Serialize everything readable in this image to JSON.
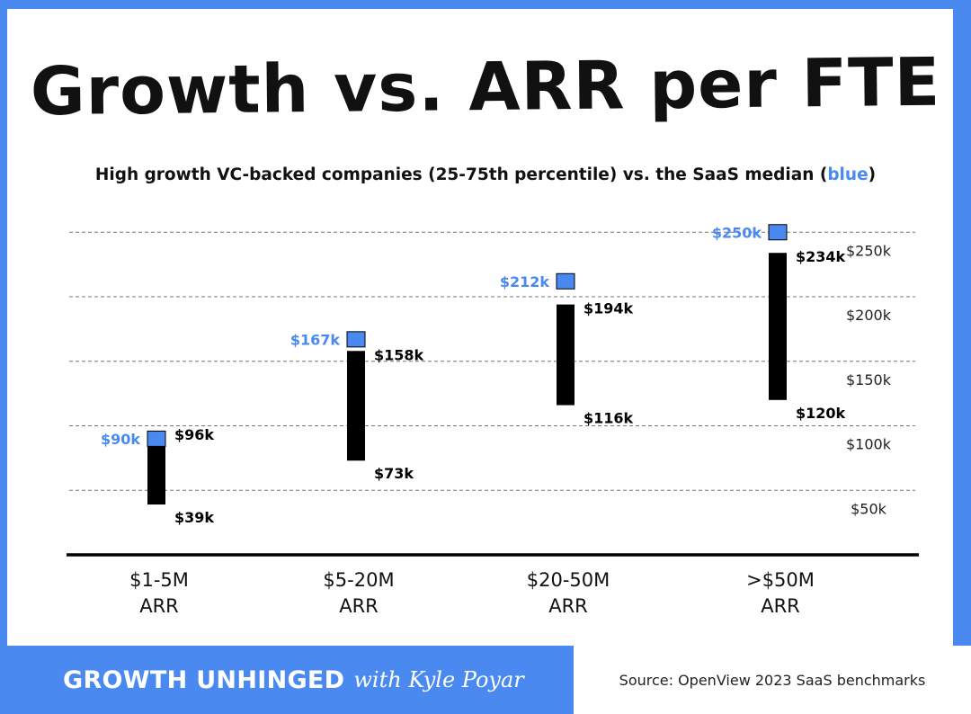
{
  "header": {
    "title": "Growth vs. ARR per FTE",
    "subtitle_main": "High growth VC-backed companies (25-75th percentile) vs. the SaaS median (",
    "subtitle_blue": "blue",
    "subtitle_end": ")"
  },
  "footer": {
    "brand": "GROWTH UNHINGED",
    "byline": "with Kyle Poyar",
    "source": "Source: OpenView 2023 SaaS benchmarks"
  },
  "colors": {
    "accent": "#4a8af0",
    "bar": "#000000",
    "median": "#4a8af0"
  },
  "chart_data": {
    "type": "bar",
    "categories": [
      [
        "$1-5M",
        "ARR"
      ],
      [
        "$5-20M",
        "ARR"
      ],
      [
        "$20-50M",
        "ARR"
      ],
      [
        ">$50M",
        "ARR"
      ]
    ],
    "series": [
      {
        "low": 39,
        "high": 96,
        "median": 90,
        "low_label": "$39k",
        "high_label": "$96k",
        "median_label": "$90k"
      },
      {
        "low": 73,
        "high": 158,
        "median": 167,
        "low_label": "$73k",
        "high_label": "$158k",
        "median_label": "$167k"
      },
      {
        "low": 116,
        "high": 194,
        "median": 212,
        "low_label": "$116k",
        "high_label": "$194k",
        "median_label": "$212k"
      },
      {
        "low": 120,
        "high": 234,
        "median": 250,
        "low_label": "$120k",
        "high_label": "$234k",
        "median_label": "$250k"
      }
    ],
    "yticks": [
      50,
      100,
      150,
      200,
      250
    ],
    "ytick_labels": [
      "$50k",
      "$100k",
      "$150k",
      "$200k",
      "$250k"
    ],
    "ylim": [
      0,
      255
    ],
    "grid": "dashed horizontal"
  }
}
